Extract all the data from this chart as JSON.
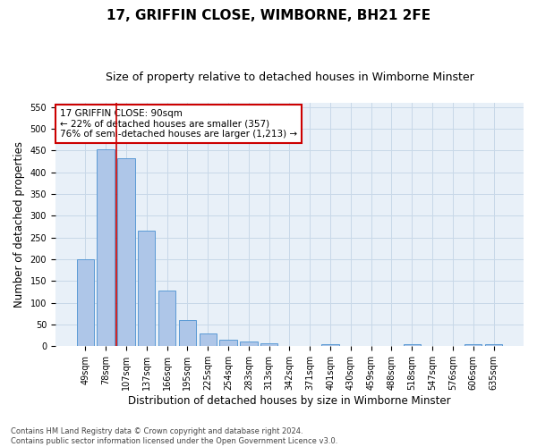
{
  "title": "17, GRIFFIN CLOSE, WIMBORNE, BH21 2FE",
  "subtitle": "Size of property relative to detached houses in Wimborne Minster",
  "xlabel": "Distribution of detached houses by size in Wimborne Minster",
  "ylabel": "Number of detached properties",
  "bar_labels": [
    "49sqm",
    "78sqm",
    "107sqm",
    "137sqm",
    "166sqm",
    "195sqm",
    "225sqm",
    "254sqm",
    "283sqm",
    "313sqm",
    "342sqm",
    "371sqm",
    "401sqm",
    "430sqm",
    "459sqm",
    "488sqm",
    "518sqm",
    "547sqm",
    "576sqm",
    "606sqm",
    "635sqm"
  ],
  "bar_values": [
    200,
    452,
    433,
    265,
    128,
    61,
    30,
    15,
    10,
    7,
    0,
    0,
    5,
    0,
    0,
    0,
    5,
    0,
    0,
    5,
    5
  ],
  "bar_color": "#aec6e8",
  "bar_edge_color": "#5b9bd5",
  "vline_x_idx": 1,
  "vline_color": "#cc0000",
  "annotation_text": "17 GRIFFIN CLOSE: 90sqm\n← 22% of detached houses are smaller (357)\n76% of semi-detached houses are larger (1,213) →",
  "annotation_box_color": "#ffffff",
  "annotation_box_edge": "#cc0000",
  "ylim": [
    0,
    560
  ],
  "yticks": [
    0,
    50,
    100,
    150,
    200,
    250,
    300,
    350,
    400,
    450,
    500,
    550
  ],
  "grid_color": "#c8d8e8",
  "background_color": "#e8f0f8",
  "footnote": "Contains HM Land Registry data © Crown copyright and database right 2024.\nContains public sector information licensed under the Open Government Licence v3.0.",
  "title_fontsize": 11,
  "subtitle_fontsize": 9,
  "xlabel_fontsize": 8.5,
  "ylabel_fontsize": 8.5,
  "annotation_fontsize": 7.5,
  "tick_fontsize": 7,
  "footnote_fontsize": 6
}
